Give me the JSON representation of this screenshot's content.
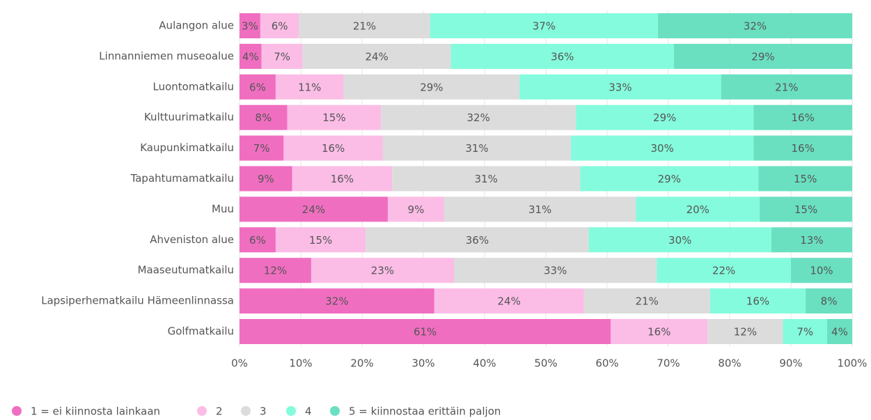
{
  "chart_data": {
    "type": "bar",
    "orientation": "horizontal",
    "stacked": true,
    "categories": [
      "Aulangon alue",
      "Linnanniemen museoalue",
      "Luontomatkailu",
      "Kulttuurimatkailu",
      "Kaupunkimatkailu",
      "Tapahtumamatkailu",
      "Muu",
      "Ahveniston alue",
      "Maaseutumatkailu",
      "Lapsiperhematkailu Hämeenlinnassa",
      "Golfmatkailu"
    ],
    "series": [
      {
        "name": "1 = ei kiinnosta lainkaan",
        "color": "#f06ec0",
        "values": [
          3.4,
          3.6,
          5.9,
          7.8,
          7.2,
          8.6,
          24.2,
          5.9,
          11.7,
          31.8,
          60.6
        ],
        "value_labels": [
          "3%",
          "4%",
          "6%",
          "8%",
          "7%",
          "9%",
          "24%",
          "6%",
          "12%",
          "32%",
          "61%"
        ]
      },
      {
        "name": "2",
        "color": "#fbbde6",
        "values": [
          6.3,
          6.7,
          11.1,
          15.3,
          16.2,
          16.3,
          9.2,
          14.7,
          23.3,
          24.4,
          15.8
        ],
        "value_labels": [
          "6%",
          "7%",
          "11%",
          "15%",
          "16%",
          "16%",
          "9%",
          "15%",
          "23%",
          "24%",
          "16%"
        ]
      },
      {
        "name": "3",
        "color": "#dcdcdc",
        "values": [
          21.4,
          24.2,
          28.7,
          31.8,
          30.7,
          30.7,
          31.3,
          36.4,
          33.1,
          20.6,
          12.3
        ],
        "value_labels": [
          "21%",
          "24%",
          "29%",
          "32%",
          "31%",
          "31%",
          "31%",
          "36%",
          "33%",
          "21%",
          "12%"
        ]
      },
      {
        "name": "4",
        "color": "#84fbdc",
        "values": [
          37.2,
          36.4,
          32.9,
          29.0,
          29.8,
          29.1,
          20.2,
          29.8,
          21.9,
          15.6,
          7.2
        ],
        "value_labels": [
          "37%",
          "36%",
          "33%",
          "29%",
          "30%",
          "29%",
          "20%",
          "30%",
          "22%",
          "16%",
          "7%"
        ]
      },
      {
        "name": "5 = kiinnostaa erittäin paljon",
        "color": "#6ae0c1",
        "values": [
          31.7,
          29.1,
          21.4,
          16.1,
          16.1,
          15.3,
          15.1,
          13.2,
          10.0,
          7.6,
          4.1
        ],
        "value_labels": [
          "32%",
          "29%",
          "21%",
          "16%",
          "16%",
          "15%",
          "15%",
          "13%",
          "10%",
          "8%",
          "4%"
        ]
      }
    ],
    "xlim": [
      0,
      100
    ],
    "xticks": [
      {
        "value": 0,
        "label": "0%"
      },
      {
        "value": 10,
        "label": "10%"
      },
      {
        "value": 20,
        "label": "20%"
      },
      {
        "value": 30,
        "label": "30%"
      },
      {
        "value": 40,
        "label": "40%"
      },
      {
        "value": 50,
        "label": "50%"
      },
      {
        "value": 60,
        "label": "60%"
      },
      {
        "value": 70,
        "label": "70%"
      },
      {
        "value": 80,
        "label": "80%"
      },
      {
        "value": 90,
        "label": "90%"
      },
      {
        "value": 100,
        "label": "100%"
      }
    ],
    "grid": true,
    "legend": "bottom-left"
  }
}
